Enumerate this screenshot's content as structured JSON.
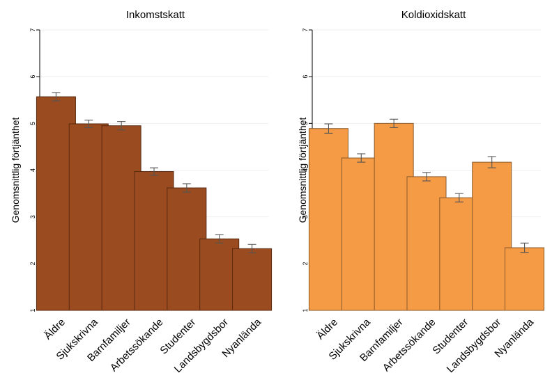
{
  "chart_data": [
    {
      "type": "bar",
      "title": "Inkomstskatt",
      "ylabel": "Genomsnittlig förtjänthet",
      "xlabel": "",
      "ylim": [
        1,
        7
      ],
      "yticks": [
        1,
        2,
        3,
        4,
        5,
        6,
        7
      ],
      "grid": true,
      "categories": [
        "Äldre",
        "Sjukskrivna",
        "Barnfamiljer",
        "Arbetssökande",
        "Studenter",
        "Landsbygdsbor",
        "Nyanlända"
      ],
      "values": [
        5.57,
        4.99,
        4.95,
        3.97,
        3.62,
        2.53,
        2.32
      ],
      "error": [
        0.09,
        0.08,
        0.09,
        0.08,
        0.09,
        0.09,
        0.09
      ],
      "color": "#9a4b1f",
      "edge_color": "#5a2a10"
    },
    {
      "type": "bar",
      "title": "Koldioxidskatt",
      "ylabel": "Genomsnittlig förtjänthet",
      "xlabel": "",
      "ylim": [
        1,
        7
      ],
      "yticks": [
        1,
        2,
        3,
        4,
        5,
        6,
        7
      ],
      "grid": true,
      "categories": [
        "Äldre",
        "Sjukskrivna",
        "Barnfamiljer",
        "Arbetssökande",
        "Studenter",
        "Landsbygdsbor",
        "Nyanlända"
      ],
      "values": [
        4.89,
        4.26,
        5.0,
        3.86,
        3.41,
        4.17,
        2.34
      ],
      "error": [
        0.1,
        0.09,
        0.09,
        0.09,
        0.09,
        0.12,
        0.1
      ],
      "color": "#f59a45",
      "edge_color": "#8a5a2a"
    }
  ]
}
